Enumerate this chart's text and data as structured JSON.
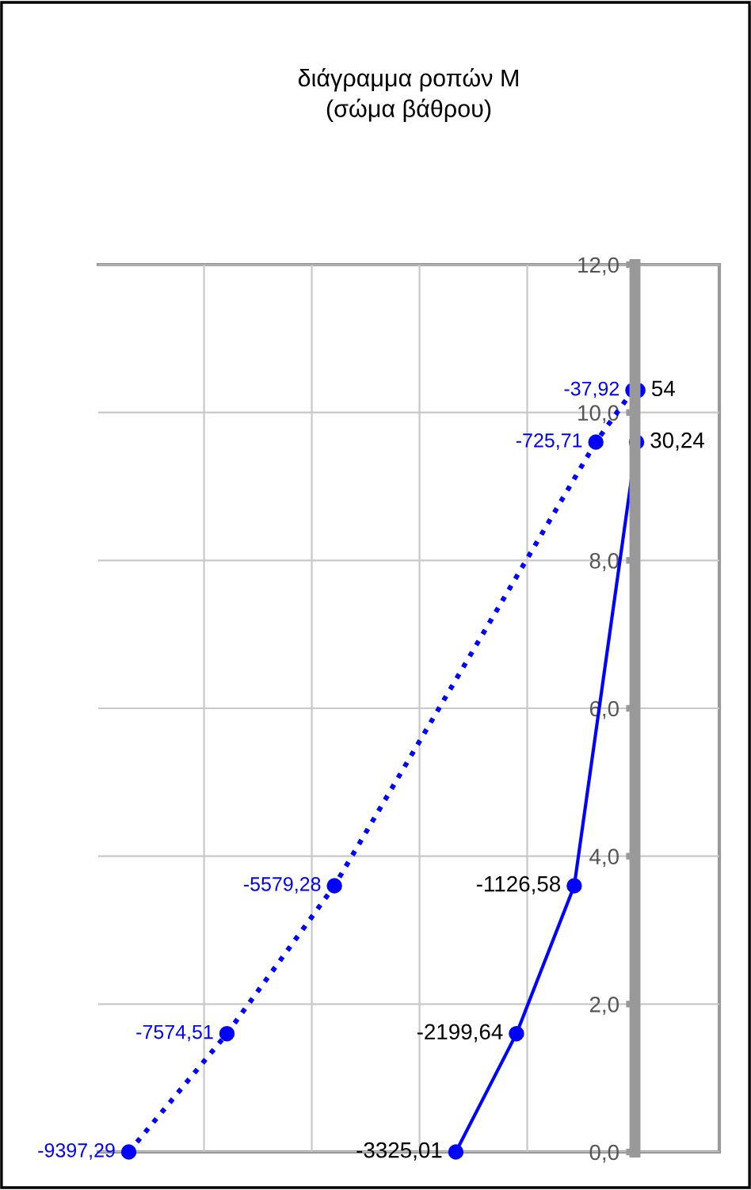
{
  "chart_data": {
    "type": "line",
    "title": "διάγραμμα ροπών M\n(σώμα βάθρου)",
    "orientation": "horizontal",
    "series": [
      {
        "color": "#0000ff",
        "line_style": "solid",
        "x": [
          0,
          1.6,
          3.6,
          9.6,
          10.3
        ],
        "values": [
          -3325.01,
          -2199.64,
          -1126.58,
          30.24,
          54
        ],
        "value_labels": [
          "-3325,01",
          "-2199,64",
          "-1126,58",
          "30,24",
          "54"
        ]
      },
      {
        "color": "#0000ff",
        "line_style": "dotted",
        "x": [
          0,
          1.6,
          3.6,
          9.6,
          10.3
        ],
        "values": [
          -9397.29,
          -7574.51,
          -5579.28,
          -725.71,
          -37.92
        ],
        "value_labels": [
          "-9397,29",
          "-7574,51",
          "-5579,28",
          "-725,71",
          "-37,92"
        ]
      }
    ],
    "ylim": [
      0,
      12
    ],
    "yticks": [
      {
        "value": 0,
        "label": "0,0"
      },
      {
        "value": 2,
        "label": "2,0"
      },
      {
        "value": 4,
        "label": "4,0"
      },
      {
        "value": 6,
        "label": "6,0"
      },
      {
        "value": 8,
        "label": "8,0"
      },
      {
        "value": 10,
        "label": "10,0"
      },
      {
        "value": 12,
        "label": "12,0"
      }
    ],
    "tick_labels": "y",
    "grid": true,
    "marker": "circle"
  }
}
